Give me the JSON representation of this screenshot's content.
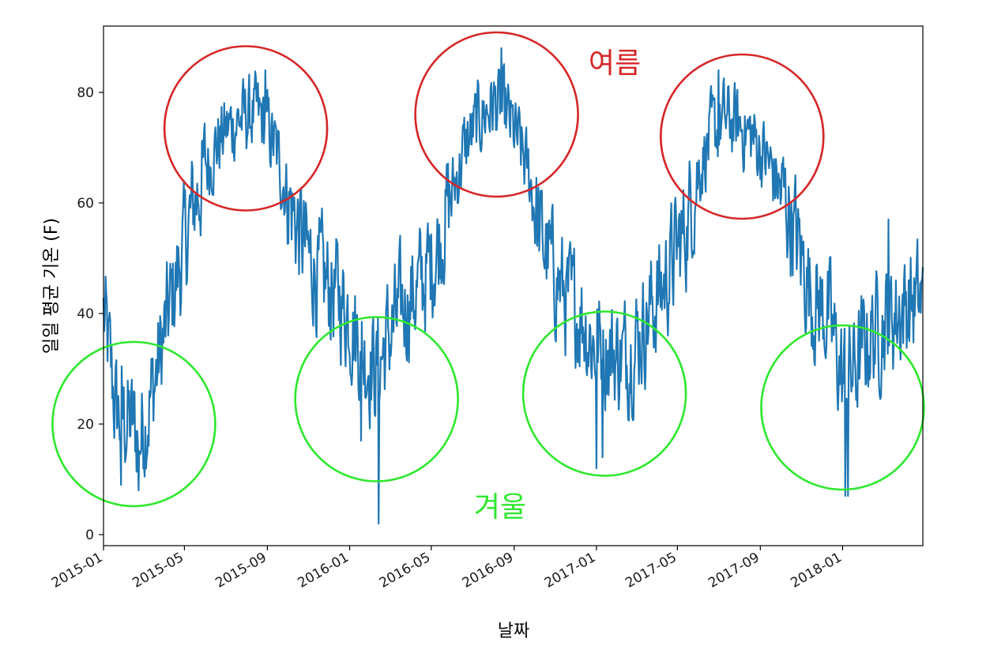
{
  "chart_data": {
    "type": "line",
    "title": "",
    "xlabel": "날짜",
    "ylabel": "일일 평균 기온 (F)",
    "x_range": [
      "2015-01-01",
      "2018-04-30"
    ],
    "ylim": [
      -2,
      92
    ],
    "y_ticks": [
      0,
      20,
      40,
      60,
      80
    ],
    "x_ticks": [
      "2015-01",
      "2015-05",
      "2015-09",
      "2016-01",
      "2016-05",
      "2016-09",
      "2017-01",
      "2017-05",
      "2017-09",
      "2018-01"
    ],
    "grid": false,
    "line_color": "#1f77b4",
    "series": [
      {
        "anchors": [
          [
            "2015-01-01",
            40
          ],
          [
            "2015-01-20",
            22
          ],
          [
            "2015-02-10",
            20
          ],
          [
            "2015-02-25",
            18
          ],
          [
            "2015-03-15",
            26
          ],
          [
            "2015-04-01",
            36
          ],
          [
            "2015-04-15",
            44
          ],
          [
            "2015-05-01",
            52
          ],
          [
            "2015-05-15",
            60
          ],
          [
            "2015-06-01",
            66
          ],
          [
            "2015-06-15",
            70
          ],
          [
            "2015-07-01",
            73
          ],
          [
            "2015-07-20",
            75
          ],
          [
            "2015-08-10",
            76
          ],
          [
            "2015-08-25",
            75
          ],
          [
            "2015-09-10",
            71
          ],
          [
            "2015-09-25",
            64
          ],
          [
            "2015-10-15",
            56
          ],
          [
            "2015-11-01",
            50
          ],
          [
            "2015-11-20",
            46
          ],
          [
            "2015-12-10",
            44
          ],
          [
            "2016-01-01",
            40
          ],
          [
            "2016-01-20",
            33
          ],
          [
            "2016-02-10",
            30
          ],
          [
            "2016-02-25",
            35
          ],
          [
            "2016-03-15",
            40
          ],
          [
            "2016-04-01",
            43
          ],
          [
            "2016-04-20",
            46
          ],
          [
            "2016-05-10",
            52
          ],
          [
            "2016-06-01",
            62
          ],
          [
            "2016-06-20",
            70
          ],
          [
            "2016-07-10",
            75
          ],
          [
            "2016-08-01",
            78
          ],
          [
            "2016-08-20",
            76
          ],
          [
            "2016-09-10",
            70
          ],
          [
            "2016-09-25",
            64
          ],
          [
            "2016-10-10",
            54
          ],
          [
            "2016-11-01",
            47
          ],
          [
            "2016-11-20",
            42
          ],
          [
            "2016-12-10",
            40
          ],
          [
            "2016-12-25",
            35
          ],
          [
            "2017-01-20",
            33
          ],
          [
            "2017-02-10",
            32
          ],
          [
            "2017-03-01",
            35
          ],
          [
            "2017-03-20",
            40
          ],
          [
            "2017-04-10",
            45
          ],
          [
            "2017-04-25",
            50
          ],
          [
            "2017-05-15",
            56
          ],
          [
            "2017-06-01",
            66
          ],
          [
            "2017-06-20",
            72
          ],
          [
            "2017-07-10",
            75
          ],
          [
            "2017-08-01",
            74
          ],
          [
            "2017-08-20",
            72
          ],
          [
            "2017-09-10",
            68
          ],
          [
            "2017-09-25",
            64
          ],
          [
            "2017-10-15",
            58
          ],
          [
            "2017-11-01",
            50
          ],
          [
            "2017-11-20",
            42
          ],
          [
            "2017-12-10",
            40
          ],
          [
            "2018-01-01",
            28
          ],
          [
            "2018-01-20",
            30
          ],
          [
            "2018-02-10",
            36
          ],
          [
            "2018-03-01",
            38
          ],
          [
            "2018-03-20",
            40
          ],
          [
            "2018-04-10",
            42
          ],
          [
            "2018-04-30",
            42
          ]
        ],
        "extremes": [
          [
            "2015-01-27",
            9
          ],
          [
            "2015-02-22",
            8
          ],
          [
            "2015-08-29",
            84
          ],
          [
            "2015-11-07",
            40
          ],
          [
            "2016-02-13",
            2
          ],
          [
            "2016-01-18",
            17
          ],
          [
            "2016-08-13",
            88
          ],
          [
            "2016-06-10",
            60
          ],
          [
            "2017-01-01",
            12
          ],
          [
            "2017-01-10",
            14
          ],
          [
            "2017-07-01",
            84
          ],
          [
            "2018-01-05",
            7
          ],
          [
            "2018-01-09",
            7
          ],
          [
            "2018-03-10",
            57
          ]
        ]
      }
    ],
    "annotations": [
      {
        "label": "여름",
        "color": "#d62728",
        "circles": [
          [
            "2015-07-31",
            73.5
          ],
          [
            "2016-08-06",
            76
          ],
          [
            "2017-08-05",
            72
          ]
        ]
      },
      {
        "label": "겨울",
        "color": "#2ee82e",
        "circles": [
          [
            "2015-02-15",
            20
          ],
          [
            "2016-02-10",
            24.5
          ],
          [
            "2017-01-13",
            25.5
          ],
          [
            "2018-01-01",
            23
          ]
        ]
      }
    ]
  }
}
